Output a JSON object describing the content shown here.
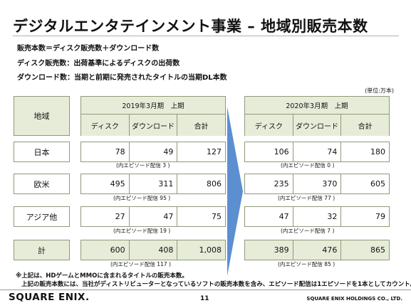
{
  "title": "デジタルエンタテインメント事業 – 地域別販売本数",
  "definitions": [
    {
      "term": "販売本数",
      "sep": "＝",
      "desc": "ディスク販売数＋ダウンロード数"
    },
    {
      "term": "ディスク販売数",
      "sep": "：",
      "desc": "出荷基準によるディスクの出荷数"
    },
    {
      "term": "ダウンロード数",
      "sep": "：",
      "desc": "当期と前期に発売されたタイトルの当期DL本数"
    }
  ],
  "unit": "(単位:万本)",
  "region_header": "地域",
  "periods": [
    {
      "label": "2019年3月期　上期",
      "columns": [
        "ディスク",
        "ダウンロード",
        "合計"
      ]
    },
    {
      "label": "2020年3月期　上期",
      "columns": [
        "ディスク",
        "ダウンロード",
        "合計"
      ]
    }
  ],
  "rows": [
    {
      "region": "日本",
      "p1": [
        "78",
        "49",
        "127"
      ],
      "p1_note": "(内エピソード配信 3 )",
      "p2": [
        "106",
        "74",
        "180"
      ],
      "p2_note": "(内エピソード配信 0 )"
    },
    {
      "region": "欧米",
      "p1": [
        "495",
        "311",
        "806"
      ],
      "p1_note": "(内エピソード配信 95 )",
      "p2": [
        "235",
        "370",
        "605"
      ],
      "p2_note": "(内エピソード配信 77 )"
    },
    {
      "region": "アジア他",
      "p1": [
        "27",
        "47",
        "75"
      ],
      "p1_note": "(内エピソード配信 19 )",
      "p2": [
        "47",
        "32",
        "79"
      ],
      "p2_note": "(内エピソード配信 7 )"
    },
    {
      "region": "計",
      "p1": [
        "600",
        "408",
        "1,008"
      ],
      "p1_note": "(内エピソード配信 117 )",
      "p2": [
        "389",
        "476",
        "865"
      ],
      "p2_note": "(内エピソード配信 85 )"
    }
  ],
  "footnotes": [
    "※上記は、HDゲームとMMOに含まれるタイトルの販売本数。",
    "上記の販売本数には、当社がディストリビューターとなっているソフトの販売本数を含み、エピソード配信は1エピソードを1本としてカウント。"
  ],
  "footer": {
    "logo": "SQUARE ENIX.",
    "page": "11",
    "company": "SQUARE ENIX HOLDINGS CO., LTD."
  },
  "colors": {
    "header_fill": "#e7ecd8",
    "border": "#8e9a7a",
    "arrow": "#5b8fd0"
  }
}
